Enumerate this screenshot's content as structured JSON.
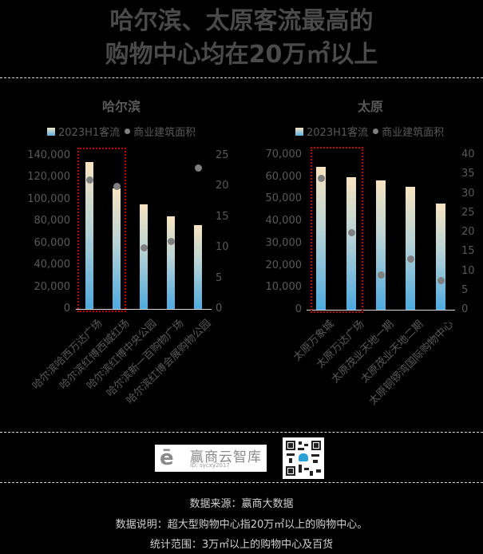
{
  "header": {
    "title_line1": "哈尔滨、太原客流最高的",
    "title_line2": "购物中心均在20万㎡以上"
  },
  "legend": {
    "bar_label": "2023H1客流",
    "dot_label": "商业建筑面积"
  },
  "chart_data": [
    {
      "type": "bar",
      "title": "哈尔滨",
      "categories": [
        "哈尔滨哈西万达广场",
        "哈尔滨红博西城红场",
        "哈尔滨红博中央公园",
        "哈尔滨新一百购物广场",
        "哈尔滨红博会展购物公园"
      ],
      "series": [
        {
          "name": "2023H1客流",
          "type": "bar",
          "axis": "left",
          "values": [
            134000,
            110000,
            95500,
            84500,
            76500
          ]
        },
        {
          "name": "商业建筑面积",
          "type": "scatter",
          "axis": "right",
          "values": [
            21,
            20,
            10,
            11,
            23
          ]
        }
      ],
      "left_axis": {
        "ylim": [
          0,
          140000
        ],
        "ticks": [
          "0",
          "20,000",
          "40,000",
          "60,000",
          "80,000",
          "100,000",
          "120,000",
          "140,000"
        ]
      },
      "right_axis": {
        "ylim": [
          0,
          25
        ],
        "ticks": [
          "0",
          "5",
          "10",
          "15",
          "20",
          "25"
        ]
      },
      "highlight": {
        "categories": [
          0,
          1
        ],
        "style": "red dotted box"
      },
      "legend_position": "top"
    },
    {
      "type": "bar",
      "title": "太原",
      "categories": [
        "太原万象城",
        "太原万达广场",
        "太原茂业天地一期",
        "太原茂业天地二期",
        "太原铜锣湾国际购物中心"
      ],
      "series": [
        {
          "name": "2023H1客流",
          "type": "bar",
          "axis": "left",
          "values": [
            64500,
            60000,
            58500,
            55500,
            48000
          ]
        },
        {
          "name": "商业建筑面积",
          "type": "scatter",
          "axis": "right",
          "values": [
            34,
            20,
            9,
            13,
            7.5
          ]
        }
      ],
      "left_axis": {
        "ylim": [
          0,
          70000
        ],
        "ticks": [
          "0",
          "10,000",
          "20,000",
          "30,000",
          "40,000",
          "50,000",
          "60,000",
          "70,000"
        ]
      },
      "right_axis": {
        "ylim": [
          0,
          40
        ],
        "ticks": [
          "0",
          "5",
          "10",
          "15",
          "20",
          "25",
          "30",
          "35",
          "40"
        ]
      },
      "highlight": {
        "categories": [
          0,
          1
        ],
        "style": "red dotted box"
      },
      "legend_position": "top"
    }
  ],
  "colors": {
    "bar_top": "#f7e4c0",
    "bar_bottom": "#4eaadf",
    "dot": "#7f7f7f",
    "highlight": "#c00000",
    "background": "#000000"
  },
  "brand": {
    "name": "赢商云智库",
    "id": "ID: sycxy2017",
    "qr_icon": "qr-code-icon"
  },
  "footer": {
    "source": "数据来源：赢商大数据",
    "note": "数据说明：超大型购物中心指20万㎡以上的购物中心。",
    "scope": "统计范围：3万㎡以上的购物中心及百货"
  }
}
